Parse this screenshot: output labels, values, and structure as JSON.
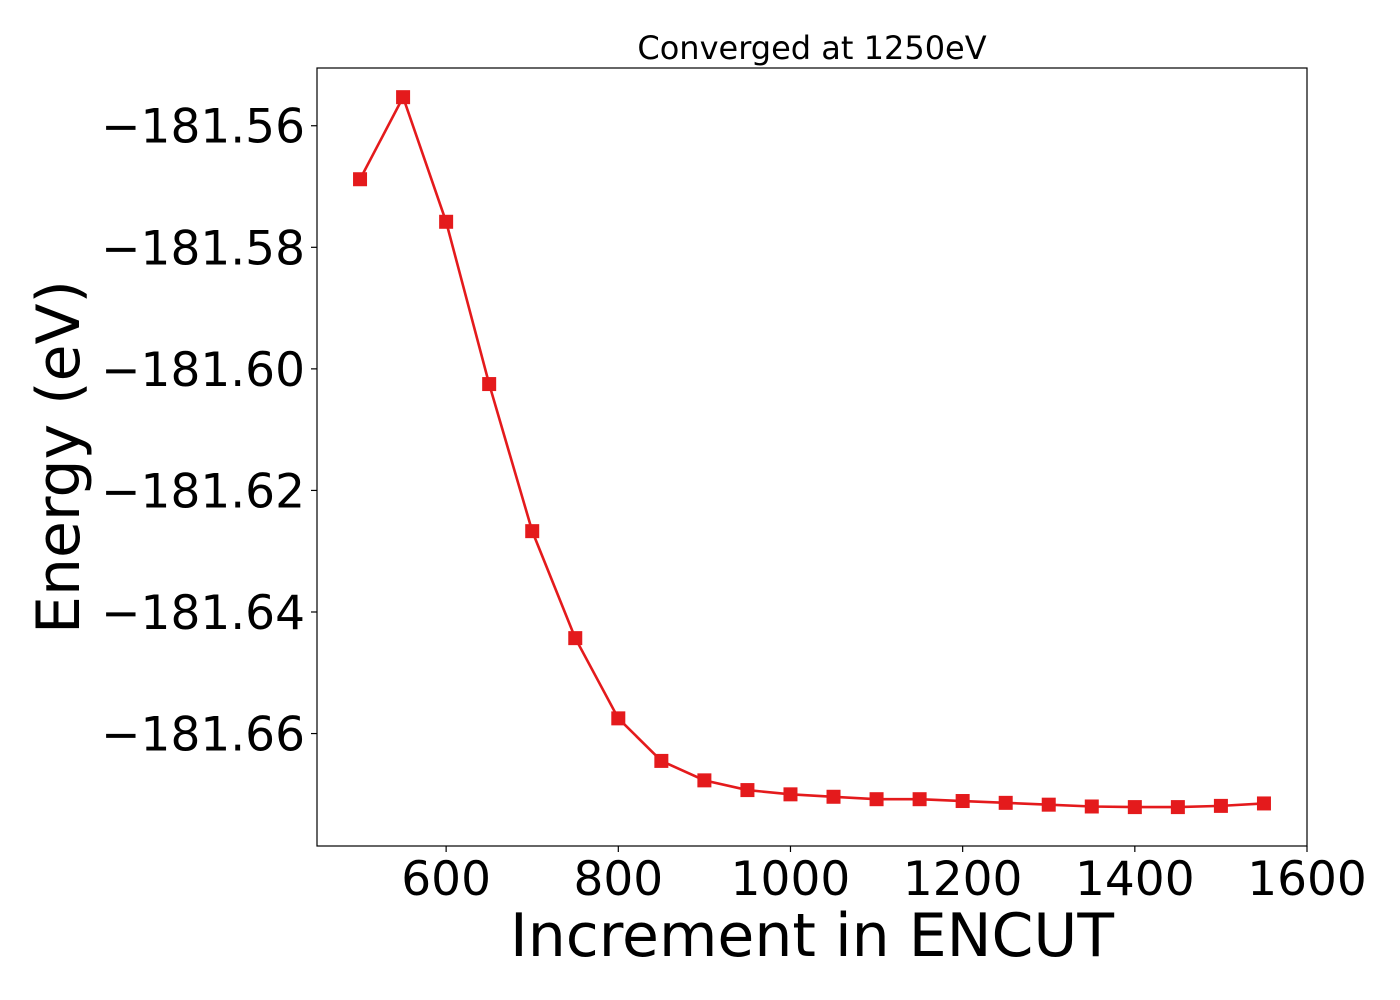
{
  "chart_data": {
    "type": "line",
    "title": "Converged at 1250eV",
    "xlabel": "Increment in ENCUT",
    "ylabel": "Energy (eV)",
    "xlim": [
      450,
      1600
    ],
    "ylim": [
      -181.6785,
      -181.5505
    ],
    "x_ticks": [
      600,
      800,
      1000,
      1200,
      1400,
      1600
    ],
    "x_tick_labels": [
      "600",
      "800",
      "1000",
      "1200",
      "1400",
      "1600"
    ],
    "y_ticks": [
      -181.56,
      -181.58,
      -181.6,
      -181.62,
      -181.64,
      -181.66
    ],
    "y_tick_labels": [
      "−181.56",
      "−181.58",
      "−181.60",
      "−181.62",
      "−181.64",
      "−181.66"
    ],
    "grid": false,
    "marker": "square",
    "color": "#e41a1c",
    "series": [
      {
        "x": [
          500,
          550,
          600,
          650,
          700,
          750,
          800,
          850,
          900,
          950,
          1000,
          1050,
          1100,
          1150,
          1200,
          1250,
          1300,
          1350,
          1400,
          1450,
          1500,
          1550
        ],
        "y": [
          -181.5688,
          -181.5553,
          -181.5758,
          -181.6025,
          -181.6267,
          -181.6443,
          -181.6575,
          -181.6645,
          -181.6677,
          -181.6693,
          -181.67,
          -181.6704,
          -181.6708,
          -181.6708,
          -181.6711,
          -181.6714,
          -181.6717,
          -181.672,
          -181.6721,
          -181.6721,
          -181.6719,
          -181.6715
        ]
      }
    ]
  }
}
